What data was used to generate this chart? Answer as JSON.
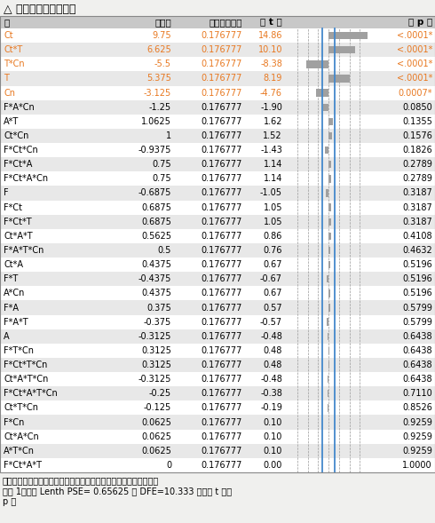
{
  "title": "△ 排序后的参数估计値",
  "col_headers": [
    "项",
    "估计値",
    "相对标准误差",
    "伪 t 比",
    "",
    "伪 p 値"
  ],
  "rows": [
    {
      "term": "Ct",
      "estimate": "9.75",
      "rse": "0.176777",
      "t": "14.86",
      "t_val": 14.86,
      "p": "<.0001*",
      "p_sig": true
    },
    {
      "term": "Ct*T",
      "estimate": "6.625",
      "rse": "0.176777",
      "t": "10.10",
      "t_val": 10.1,
      "p": "<.0001*",
      "p_sig": true
    },
    {
      "term": "T*Cn",
      "estimate": "-5.5",
      "rse": "0.176777",
      "t": "-8.38",
      "t_val": -8.38,
      "p": "<.0001*",
      "p_sig": true
    },
    {
      "term": "T",
      "estimate": "5.375",
      "rse": "0.176777",
      "t": "8.19",
      "t_val": 8.19,
      "p": "<.0001*",
      "p_sig": true
    },
    {
      "term": "Cn",
      "estimate": "-3.125",
      "rse": "0.176777",
      "t": "-4.76",
      "t_val": -4.76,
      "p": "0.0007*",
      "p_sig": true
    },
    {
      "term": "F*A*Cn",
      "estimate": "-1.25",
      "rse": "0.176777",
      "t": "-1.90",
      "t_val": -1.9,
      "p": "0.0850",
      "p_sig": false
    },
    {
      "term": "A*T",
      "estimate": "1.0625",
      "rse": "0.176777",
      "t": "1.62",
      "t_val": 1.62,
      "p": "0.1355",
      "p_sig": false
    },
    {
      "term": "Ct*Cn",
      "estimate": "1",
      "rse": "0.176777",
      "t": "1.52",
      "t_val": 1.52,
      "p": "0.1576",
      "p_sig": false
    },
    {
      "term": "F*Ct*Cn",
      "estimate": "-0.9375",
      "rse": "0.176777",
      "t": "-1.43",
      "t_val": -1.43,
      "p": "0.1826",
      "p_sig": false
    },
    {
      "term": "F*Ct*A",
      "estimate": "0.75",
      "rse": "0.176777",
      "t": "1.14",
      "t_val": 1.14,
      "p": "0.2789",
      "p_sig": false
    },
    {
      "term": "F*Ct*A*Cn",
      "estimate": "0.75",
      "rse": "0.176777",
      "t": "1.14",
      "t_val": 1.14,
      "p": "0.2789",
      "p_sig": false
    },
    {
      "term": "F",
      "estimate": "-0.6875",
      "rse": "0.176777",
      "t": "-1.05",
      "t_val": -1.05,
      "p": "0.3187",
      "p_sig": false
    },
    {
      "term": "F*Ct",
      "estimate": "0.6875",
      "rse": "0.176777",
      "t": "1.05",
      "t_val": 1.05,
      "p": "0.3187",
      "p_sig": false
    },
    {
      "term": "F*Ct*T",
      "estimate": "0.6875",
      "rse": "0.176777",
      "t": "1.05",
      "t_val": 1.05,
      "p": "0.3187",
      "p_sig": false
    },
    {
      "term": "Ct*A*T",
      "estimate": "0.5625",
      "rse": "0.176777",
      "t": "0.86",
      "t_val": 0.86,
      "p": "0.4108",
      "p_sig": false
    },
    {
      "term": "F*A*T*Cn",
      "estimate": "0.5",
      "rse": "0.176777",
      "t": "0.76",
      "t_val": 0.76,
      "p": "0.4632",
      "p_sig": false
    },
    {
      "term": "Ct*A",
      "estimate": "0.4375",
      "rse": "0.176777",
      "t": "0.67",
      "t_val": 0.67,
      "p": "0.5196",
      "p_sig": false
    },
    {
      "term": "F*T",
      "estimate": "-0.4375",
      "rse": "0.176777",
      "t": "-0.67",
      "t_val": -0.67,
      "p": "0.5196",
      "p_sig": false
    },
    {
      "term": "A*Cn",
      "estimate": "0.4375",
      "rse": "0.176777",
      "t": "0.67",
      "t_val": 0.67,
      "p": "0.5196",
      "p_sig": false
    },
    {
      "term": "F*A",
      "estimate": "0.375",
      "rse": "0.176777",
      "t": "0.57",
      "t_val": 0.57,
      "p": "0.5799",
      "p_sig": false
    },
    {
      "term": "F*A*T",
      "estimate": "-0.375",
      "rse": "0.176777",
      "t": "-0.57",
      "t_val": -0.57,
      "p": "0.5799",
      "p_sig": false
    },
    {
      "term": "A",
      "estimate": "-0.3125",
      "rse": "0.176777",
      "t": "-0.48",
      "t_val": -0.48,
      "p": "0.6438",
      "p_sig": false
    },
    {
      "term": "F*T*Cn",
      "estimate": "0.3125",
      "rse": "0.176777",
      "t": "0.48",
      "t_val": 0.48,
      "p": "0.6438",
      "p_sig": false
    },
    {
      "term": "F*Ct*T*Cn",
      "estimate": "0.3125",
      "rse": "0.176777",
      "t": "0.48",
      "t_val": 0.48,
      "p": "0.6438",
      "p_sig": false
    },
    {
      "term": "Ct*A*T*Cn",
      "estimate": "-0.3125",
      "rse": "0.176777",
      "t": "-0.48",
      "t_val": -0.48,
      "p": "0.6438",
      "p_sig": false
    },
    {
      "term": "F*Ct*A*T*Cn",
      "estimate": "-0.25",
      "rse": "0.176777",
      "t": "-0.38",
      "t_val": -0.38,
      "p": "0.7110",
      "p_sig": false
    },
    {
      "term": "Ct*T*Cn",
      "estimate": "-0.125",
      "rse": "0.176777",
      "t": "-0.19",
      "t_val": -0.19,
      "p": "0.8526",
      "p_sig": false
    },
    {
      "term": "F*Cn",
      "estimate": "0.0625",
      "rse": "0.176777",
      "t": "0.10",
      "t_val": 0.1,
      "p": "0.9259",
      "p_sig": false
    },
    {
      "term": "Ct*A*Cn",
      "estimate": "0.0625",
      "rse": "0.176777",
      "t": "0.10",
      "t_val": 0.1,
      "p": "0.9259",
      "p_sig": false
    },
    {
      "term": "A*T*Cn",
      "estimate": "0.0625",
      "rse": "0.176777",
      "t": "0.10",
      "t_val": 0.1,
      "p": "0.9259",
      "p_sig": false
    },
    {
      "term": "F*Ct*A*T",
      "estimate": "0",
      "rse": "0.176777",
      "t": "0.00",
      "t_val": 0.0,
      "p": "1.0000",
      "p_sig": false
    }
  ],
  "footer_lines": [
    "无误差自由度，因此无法计算普通检验。相对标准误差对应残差标准",
    "误差 1。使用 Lenth PSE= 0.65625 与 DFE=10.333 计算伪 t 比与",
    "p 値"
  ],
  "bg_color": "#f0f0ee",
  "row_even_color": "#ffffff",
  "row_odd_color": "#e8e8e8",
  "header_bg_color": "#c8c8c8",
  "bar_color": "#a0a0a0",
  "sig_color": "#e87820",
  "normal_color": "#000000",
  "blue_line_color": "#4488cc",
  "t_scale_max": 16.0,
  "t_lenth_crit": 2.228
}
